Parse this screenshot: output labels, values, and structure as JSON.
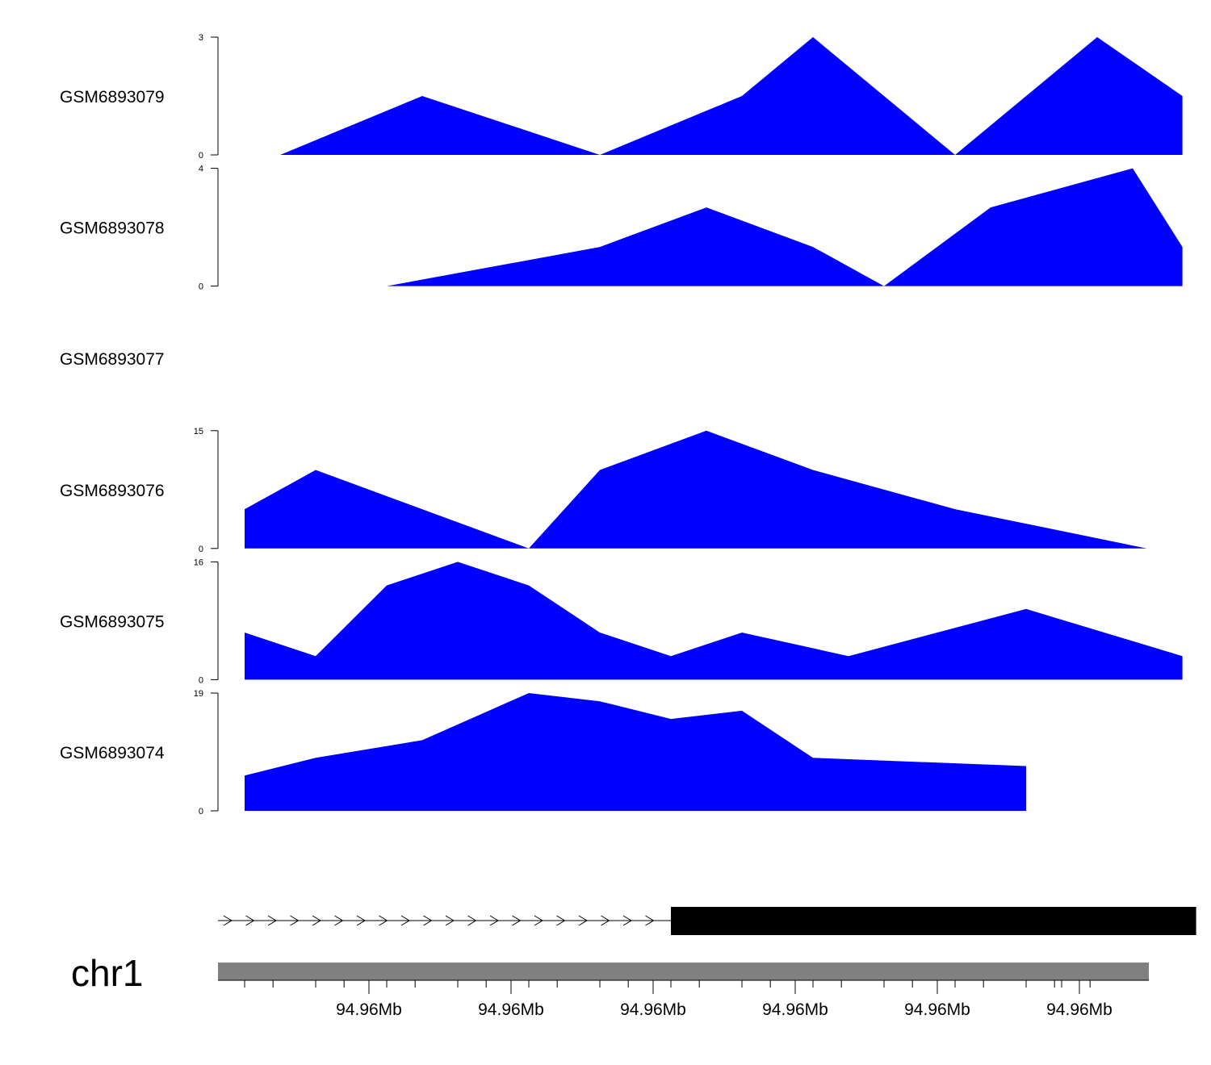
{
  "chart_data": {
    "type": "area",
    "colors": {
      "area": "#0000ff",
      "gene": "#000000",
      "ideogram": "#808080"
    },
    "x": [
      -1.2,
      0,
      1,
      2,
      3,
      4,
      5,
      6,
      7,
      8,
      9,
      10,
      11,
      12,
      13,
      14,
      14.5
    ],
    "tracks": [
      {
        "name": "GSM6893079",
        "ylim": [
          0,
          3
        ],
        "points": [
          [
            3.5,
            0
          ],
          [
            5.5,
            1.5
          ],
          [
            8,
            0
          ],
          [
            10,
            1.5
          ],
          [
            11,
            3
          ],
          [
            13,
            0
          ],
          [
            15,
            3
          ],
          [
            16.2,
            1.5
          ],
          [
            16.2,
            0
          ]
        ]
      },
      {
        "name": "GSM6893078",
        "ylim": [
          0,
          4
        ],
        "points": [
          [
            5,
            0
          ],
          [
            8,
            1.33
          ],
          [
            9.5,
            2.67
          ],
          [
            11,
            1.33
          ],
          [
            12,
            0
          ],
          [
            13.5,
            2.67
          ],
          [
            15.5,
            4
          ],
          [
            16.2,
            1.33
          ],
          [
            16.2,
            0
          ]
        ]
      },
      {
        "name": "GSM6893077",
        "ylim": null,
        "points": []
      },
      {
        "name": "GSM6893076",
        "ylim": [
          0,
          15
        ],
        "points": [
          [
            3,
            0
          ],
          [
            3,
            5
          ],
          [
            4,
            10
          ],
          [
            7,
            0
          ],
          [
            8,
            10
          ],
          [
            9.5,
            15
          ],
          [
            11,
            10
          ],
          [
            13,
            5
          ],
          [
            15.7,
            0
          ]
        ]
      },
      {
        "name": "GSM6893075",
        "ylim": [
          0,
          16
        ],
        "points": [
          [
            3,
            0
          ],
          [
            3,
            6.4
          ],
          [
            4,
            3.2
          ],
          [
            5,
            12.8
          ],
          [
            6,
            16
          ],
          [
            7,
            12.8
          ],
          [
            8,
            6.4
          ],
          [
            9,
            3.2
          ],
          [
            10,
            6.4
          ],
          [
            11.5,
            3.2
          ],
          [
            14,
            9.6
          ],
          [
            16.2,
            3.2
          ],
          [
            16.2,
            0
          ]
        ]
      },
      {
        "name": "GSM6893074",
        "ylim": [
          0,
          19
        ],
        "points": [
          [
            3,
            0
          ],
          [
            3,
            5.7
          ],
          [
            4,
            8.55
          ],
          [
            5.5,
            11.4
          ],
          [
            7,
            19
          ],
          [
            8,
            17.67
          ],
          [
            9,
            14.82
          ],
          [
            10,
            16.15
          ],
          [
            11,
            8.55
          ],
          [
            14,
            7.22
          ],
          [
            14,
            0
          ]
        ]
      }
    ],
    "gene_model": {
      "arrow_start": 3,
      "arrow_end": 9,
      "block_start": 9,
      "block_end": 16.2
    },
    "chromosome": "chr1",
    "xticks": [
      {
        "pos": 4.75,
        "label": "94.96Mb"
      },
      {
        "pos": 6.75,
        "label": "94.96Mb"
      },
      {
        "pos": 8.75,
        "label": "94.96Mb"
      },
      {
        "pos": 10.75,
        "label": "94.96Mb"
      },
      {
        "pos": 12.75,
        "label": "94.96Mb"
      },
      {
        "pos": 14.75,
        "label": "94.96Mb"
      }
    ]
  }
}
